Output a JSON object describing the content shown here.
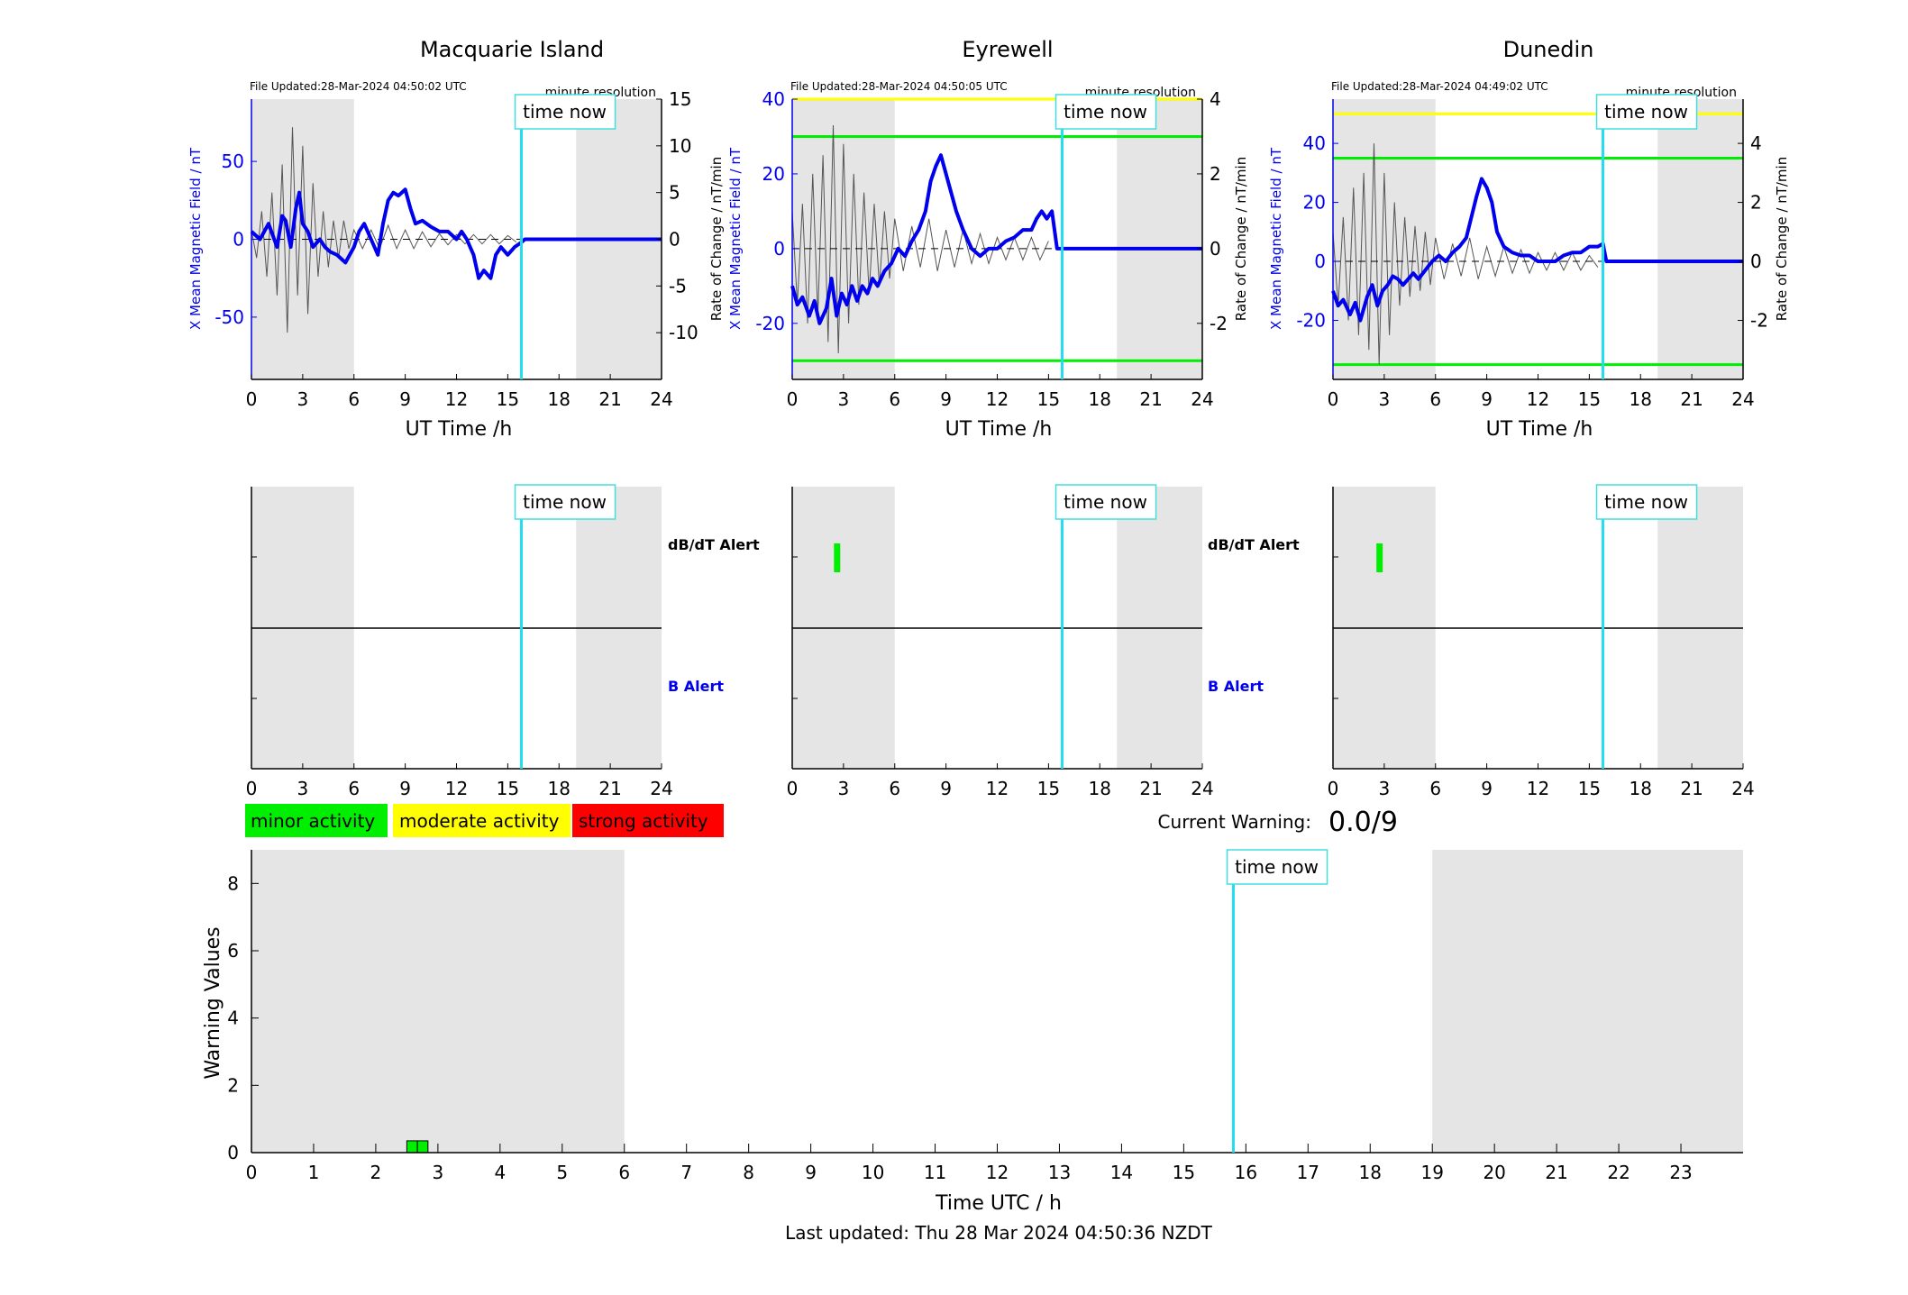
{
  "colors": {
    "night": "#e5e5e5",
    "field": "#0000ee",
    "roc": "#555555",
    "time_now": "#22ddee",
    "minor": "#00ee00",
    "moderate": "#ffff00",
    "strong": "#ff0000",
    "box_border": "#44dddd"
  },
  "labels": {
    "time_now": "time now",
    "minute_resolution": "minute resolution",
    "ut_time": "UT Time /h",
    "x_field": "X Mean Magnetic Field / nT",
    "roc": "Rate of Change / nT/min",
    "dbdt_alert": "dB/dT Alert",
    "b_alert": "B Alert",
    "current_warning_label": "Current Warning:",
    "current_warning_value": "0.0/9",
    "last_updated": "Last updated: Thu 28 Mar 2024 04:50:36 NZDT"
  },
  "legend": [
    {
      "label": "minor activity",
      "color": "#00ee00"
    },
    {
      "label": "moderate activity",
      "color": "#ffff00"
    },
    {
      "label": "strong activity",
      "color": "#ff0000"
    }
  ],
  "chart_data": [
    {
      "type": "line",
      "title": "Macquarie Island",
      "file_updated": "File Updated:28-Mar-2024 04:50:02 UTC",
      "xlabel": "UT Time /h",
      "ylabel": "X Mean Magnetic Field / nT",
      "y2label": "Rate of Change / nT/min",
      "xlim": [
        0,
        24
      ],
      "xticks": [
        0,
        3,
        6,
        9,
        12,
        15,
        18,
        21,
        24
      ],
      "ylim": [
        -90,
        90
      ],
      "yticks": [
        -50,
        0,
        50
      ],
      "y2lim": [
        -15,
        15
      ],
      "y2ticks": [
        -10,
        -5,
        0,
        5,
        10,
        15
      ],
      "night": [
        [
          0,
          6
        ],
        [
          19,
          24
        ]
      ],
      "time_now": 15.8,
      "thresholds": [],
      "series": [
        {
          "x": [
            0,
            0.5,
            1,
            1.5,
            1.8,
            2,
            2.3,
            2.6,
            2.8,
            3,
            3.3,
            3.6,
            4,
            4.3,
            4.6,
            5,
            5.5,
            6,
            6.3,
            6.6,
            7,
            7.4,
            7.7,
            8,
            8.3,
            8.6,
            9,
            9.3,
            9.6,
            10,
            10.5,
            11,
            11.5,
            12,
            12.3,
            12.6,
            13,
            13.3,
            13.6,
            14,
            14.3,
            14.6,
            15,
            15.4,
            15.8,
            16,
            20,
            24
          ],
          "y": [
            5,
            0,
            10,
            -5,
            15,
            12,
            -5,
            20,
            30,
            10,
            5,
            -5,
            0,
            -5,
            -8,
            -10,
            -15,
            -5,
            5,
            10,
            0,
            -10,
            10,
            25,
            30,
            28,
            32,
            20,
            10,
            12,
            8,
            5,
            5,
            0,
            5,
            0,
            -10,
            -25,
            -20,
            -25,
            -10,
            -5,
            -10,
            -5,
            -2,
            0,
            0,
            0
          ]
        },
        {
          "x": [
            0,
            0.3,
            0.6,
            0.9,
            1.2,
            1.5,
            1.8,
            2.1,
            2.4,
            2.7,
            3,
            3.3,
            3.6,
            3.9,
            4.2,
            4.5,
            4.8,
            5.1,
            5.4,
            5.7,
            6,
            6.5,
            7,
            7.5,
            8,
            8.5,
            9,
            9.5,
            10,
            10.5,
            11,
            11.5,
            12,
            12.5,
            13,
            13.5,
            14,
            14.5,
            15,
            15.5
          ],
          "y": [
            1,
            -2,
            3,
            -4,
            5,
            -6,
            8,
            -10,
            12,
            -6,
            10,
            -8,
            6,
            -4,
            3,
            -3,
            2,
            -2,
            2,
            -1,
            1,
            -1,
            1,
            -1,
            1.5,
            -1,
            1,
            -1,
            0.8,
            -0.8,
            0.6,
            -0.6,
            0.5,
            -0.5,
            0.5,
            -0.5,
            0.5,
            -0.5,
            0.4,
            -0.3
          ]
        }
      ]
    },
    {
      "type": "line",
      "title": "Eyrewell",
      "file_updated": "File Updated:28-Mar-2024 04:50:05 UTC",
      "xlabel": "UT Time /h",
      "ylabel": "X Mean Magnetic Field / nT",
      "y2label": "Rate of Change / nT/min",
      "xlim": [
        0,
        24
      ],
      "xticks": [
        0,
        3,
        6,
        9,
        12,
        15,
        18,
        21,
        24
      ],
      "ylim": [
        -35,
        40
      ],
      "yticks": [
        -20,
        0,
        20,
        40
      ],
      "y2lim": [
        -3.5,
        4
      ],
      "y2ticks": [
        -2,
        0,
        2,
        4
      ],
      "night": [
        [
          0,
          6
        ],
        [
          19,
          24
        ]
      ],
      "time_now": 15.8,
      "thresholds": [
        {
          "value": 40,
          "color": "#ffff00"
        },
        {
          "value": 30,
          "color": "#00ee00"
        },
        {
          "value": -30,
          "color": "#00ee00"
        }
      ],
      "series": [
        {
          "x": [
            0,
            0.3,
            0.6,
            1,
            1.3,
            1.6,
            2,
            2.3,
            2.6,
            2.9,
            3.2,
            3.5,
            3.8,
            4.1,
            4.4,
            4.7,
            5,
            5.4,
            5.8,
            6.2,
            6.6,
            7,
            7.4,
            7.8,
            8.1,
            8.4,
            8.7,
            9,
            9.3,
            9.6,
            10,
            10.5,
            11,
            11.5,
            12,
            12.5,
            13,
            13.5,
            14,
            14.3,
            14.6,
            14.9,
            15.2,
            15.5,
            15.8,
            16,
            20,
            24
          ],
          "y": [
            -10,
            -15,
            -13,
            -18,
            -14,
            -20,
            -16,
            -8,
            -18,
            -12,
            -15,
            -10,
            -14,
            -10,
            -12,
            -8,
            -10,
            -6,
            -4,
            0,
            -2,
            2,
            5,
            10,
            18,
            22,
            25,
            20,
            15,
            10,
            5,
            0,
            -2,
            0,
            0,
            2,
            3,
            5,
            5,
            8,
            10,
            8,
            10,
            0,
            0,
            0,
            0,
            0
          ]
        },
        {
          "x": [
            0,
            0.3,
            0.6,
            0.9,
            1.2,
            1.5,
            1.8,
            2.1,
            2.4,
            2.7,
            3,
            3.3,
            3.6,
            3.9,
            4.2,
            4.5,
            4.8,
            5.1,
            5.4,
            5.7,
            6,
            6.5,
            7,
            7.5,
            8,
            8.5,
            9,
            9.5,
            10,
            10.5,
            11,
            11.5,
            12,
            12.5,
            13,
            13.5,
            14,
            14.5,
            15
          ],
          "y": [
            1,
            -1.5,
            1.2,
            -2,
            2,
            -1.8,
            2.5,
            -2.5,
            3.3,
            -2.8,
            2.8,
            -2,
            2,
            -1.5,
            1.5,
            -1.2,
            1.2,
            -1,
            1,
            -0.8,
            0.8,
            -0.6,
            0.6,
            -0.5,
            0.8,
            -0.6,
            0.5,
            -0.5,
            0.5,
            -0.4,
            0.4,
            -0.4,
            0.3,
            -0.3,
            0.3,
            -0.3,
            0.3,
            -0.3,
            0.2
          ]
        }
      ]
    },
    {
      "type": "line",
      "title": "Dunedin",
      "file_updated": "File Updated:28-Mar-2024 04:49:02 UTC",
      "xlabel": "UT Time /h",
      "ylabel": "X Mean Magnetic Field / nT",
      "y2label": "Rate of Change / nT/min",
      "xlim": [
        0,
        24
      ],
      "xticks": [
        0,
        3,
        6,
        9,
        12,
        15,
        18,
        21,
        24
      ],
      "ylim": [
        -40,
        55
      ],
      "yticks": [
        -20,
        0,
        20,
        40
      ],
      "y2lim": [
        -4,
        5.5
      ],
      "y2ticks": [
        -2,
        0,
        2,
        4
      ],
      "night": [
        [
          0,
          6
        ],
        [
          19,
          24
        ]
      ],
      "time_now": 15.8,
      "thresholds": [
        {
          "value": 50,
          "color": "#ffff00"
        },
        {
          "value": 35,
          "color": "#00ee00"
        },
        {
          "value": -35,
          "color": "#00ee00"
        }
      ],
      "series": [
        {
          "x": [
            0,
            0.3,
            0.6,
            1,
            1.3,
            1.6,
            2,
            2.3,
            2.6,
            2.9,
            3.2,
            3.5,
            3.8,
            4.1,
            4.4,
            4.7,
            5,
            5.4,
            5.8,
            6.2,
            6.6,
            7,
            7.4,
            7.8,
            8.1,
            8.4,
            8.7,
            9,
            9.3,
            9.6,
            10,
            10.5,
            11,
            11.5,
            12,
            12.5,
            13,
            13.5,
            14,
            14.5,
            15,
            15.5,
            15.8,
            16,
            20,
            24
          ],
          "y": [
            -10,
            -15,
            -13,
            -18,
            -14,
            -20,
            -12,
            -8,
            -15,
            -10,
            -8,
            -5,
            -6,
            -8,
            -6,
            -4,
            -6,
            -3,
            0,
            2,
            0,
            3,
            5,
            8,
            15,
            22,
            28,
            25,
            20,
            10,
            5,
            3,
            2,
            2,
            0,
            0,
            0,
            2,
            3,
            3,
            5,
            5,
            6,
            0,
            0,
            0
          ]
        },
        {
          "x": [
            0,
            0.3,
            0.6,
            0.9,
            1.2,
            1.5,
            1.8,
            2.1,
            2.4,
            2.7,
            3,
            3.3,
            3.6,
            3.9,
            4.2,
            4.5,
            4.8,
            5.1,
            5.4,
            5.7,
            6,
            6.5,
            7,
            7.5,
            8,
            8.5,
            9,
            9.5,
            10,
            10.5,
            11,
            11.5,
            12,
            12.5,
            13,
            13.5,
            14,
            14.5,
            15,
            15.5
          ],
          "y": [
            1,
            -1.5,
            1.5,
            -2,
            2.5,
            -2.5,
            3,
            -3,
            4,
            -3.5,
            3,
            -2.5,
            2,
            -1.5,
            1.5,
            -1.2,
            1.2,
            -1,
            1,
            -0.8,
            0.8,
            -0.6,
            0.6,
            -0.5,
            0.8,
            -0.6,
            0.5,
            -0.5,
            0.5,
            -0.4,
            0.4,
            -0.4,
            0.3,
            -0.3,
            0.3,
            -0.3,
            0.3,
            -0.3,
            0.2,
            -0.2
          ]
        }
      ]
    },
    {
      "type": "bar",
      "title": "",
      "xlim": [
        0,
        24
      ],
      "xticks": [
        0,
        3,
        6,
        9,
        12,
        15,
        18,
        21,
        24
      ],
      "night": [
        [
          0,
          6
        ],
        [
          19,
          24
        ]
      ],
      "time_now": 15.8,
      "dbdt_alerts": [],
      "b_alerts": []
    },
    {
      "type": "bar",
      "title": "",
      "xlim": [
        0,
        24
      ],
      "xticks": [
        0,
        3,
        6,
        9,
        12,
        15,
        18,
        21,
        24
      ],
      "night": [
        [
          0,
          6
        ],
        [
          19,
          24
        ]
      ],
      "time_now": 15.8,
      "dbdt_alerts": [
        {
          "x": 2.6,
          "color": "#00ee00"
        }
      ],
      "b_alerts": []
    },
    {
      "type": "bar",
      "title": "",
      "xlim": [
        0,
        24
      ],
      "xticks": [
        0,
        3,
        6,
        9,
        12,
        15,
        18,
        21,
        24
      ],
      "night": [
        [
          0,
          6
        ],
        [
          19,
          24
        ]
      ],
      "time_now": 15.8,
      "dbdt_alerts": [
        {
          "x": 2.7,
          "color": "#00ee00"
        }
      ],
      "b_alerts": []
    },
    {
      "type": "bar",
      "title": "",
      "xlabel": "Time UTC / h",
      "ylabel": "Warning Values",
      "xlim": [
        0,
        24
      ],
      "xticks": [
        0,
        1,
        2,
        3,
        4,
        5,
        6,
        7,
        8,
        9,
        10,
        11,
        12,
        13,
        14,
        15,
        16,
        17,
        18,
        19,
        20,
        21,
        22,
        23
      ],
      "ylim": [
        0,
        9
      ],
      "yticks": [
        0,
        2,
        4,
        6,
        8
      ],
      "night": [
        [
          0,
          6
        ],
        [
          19,
          24
        ]
      ],
      "time_now": 15.8,
      "bars": [
        {
          "x": 2.5,
          "width": 0.17,
          "value": 0.35,
          "color": "#00ee00"
        },
        {
          "x": 2.67,
          "width": 0.17,
          "value": 0.35,
          "color": "#00ee00"
        }
      ]
    }
  ]
}
